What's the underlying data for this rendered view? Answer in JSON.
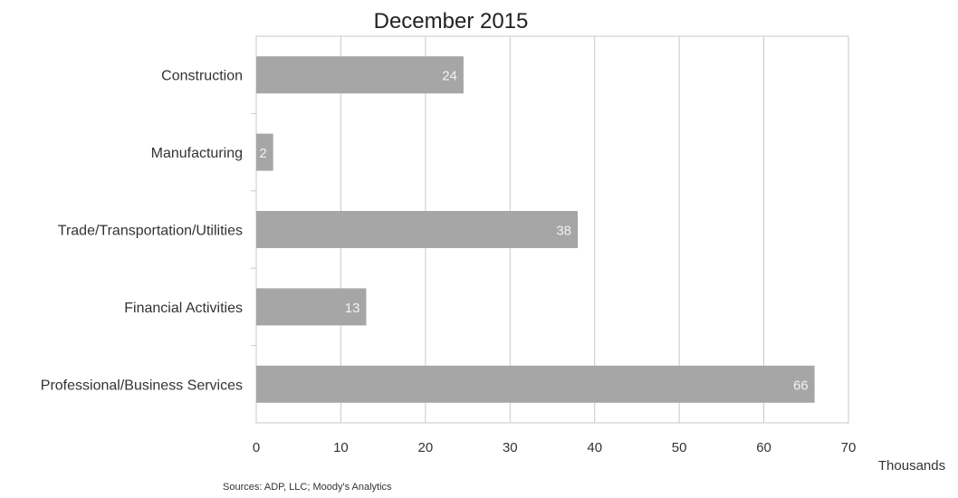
{
  "chart_data": {
    "type": "bar",
    "orientation": "horizontal",
    "title": "December 2015",
    "categories": [
      "Construction",
      "Manufacturing",
      "Trade/Transportation/Utilities",
      "Financial Activities",
      "Professional/Business Services"
    ],
    "values": [
      24.5,
      2,
      38,
      13,
      66
    ],
    "data_labels": [
      "24",
      "2",
      "38",
      "13",
      "66"
    ],
    "xlim": [
      0,
      70
    ],
    "xticks": [
      0,
      10,
      20,
      30,
      40,
      50,
      60,
      70
    ],
    "xlabel": "Thousands",
    "grid": true,
    "legend": "none",
    "bar_color": "#a6a6a6",
    "source": "Sources: ADP, LLC; Moody's Analytics"
  }
}
